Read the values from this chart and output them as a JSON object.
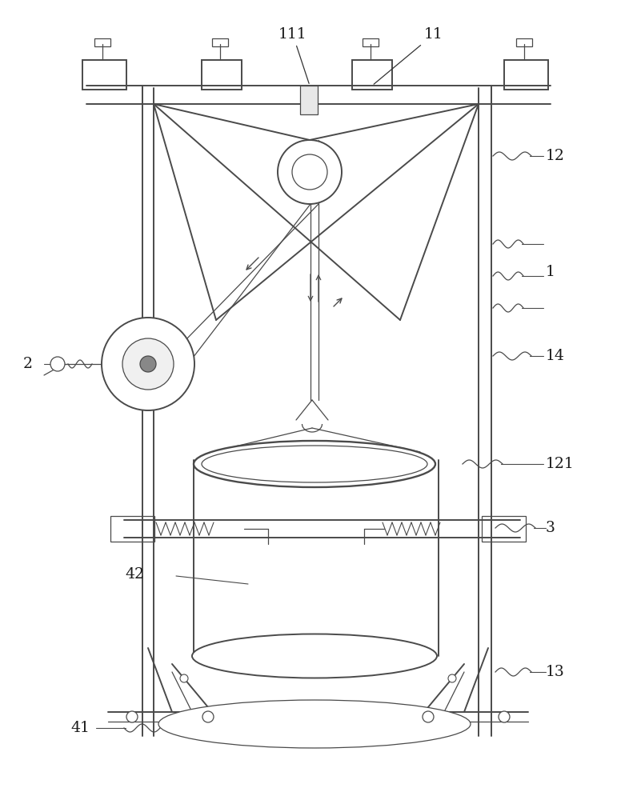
{
  "bg_color": "#ffffff",
  "lc": "#4a4a4a",
  "figsize": [
    7.96,
    10.0
  ],
  "dpi": 100
}
